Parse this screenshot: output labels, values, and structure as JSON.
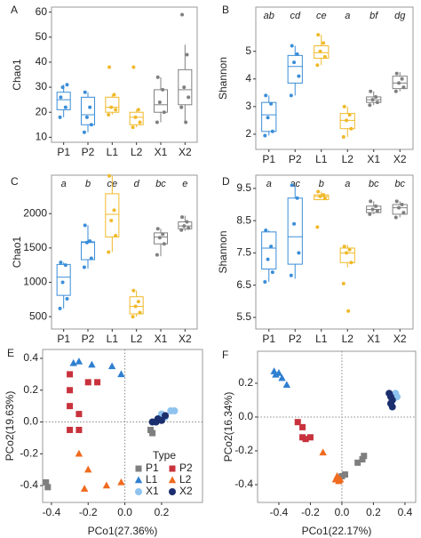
{
  "chart_data": [
    {
      "type": "box",
      "panel_label": "A",
      "y_label": "Chao1",
      "categories": [
        "P1",
        "P2",
        "L1",
        "L2",
        "X1",
        "X2"
      ],
      "colors": [
        "#3b8ed8",
        "#3b8ed8",
        "#f0b92a",
        "#f0b92a",
        "#808080",
        "#808080"
      ],
      "boxes": [
        {
          "whislo": 18,
          "q1": 21,
          "med": 25,
          "q3": 28,
          "whishi": 31,
          "points": [
            26,
            22,
            30,
            31,
            18
          ]
        },
        {
          "whislo": 12,
          "q1": 15,
          "med": 19,
          "q3": 26,
          "whishi": 28,
          "points": [
            28,
            22,
            18,
            15,
            12
          ]
        },
        {
          "whislo": 19,
          "q1": 20,
          "med": 22,
          "q3": 26,
          "whishi": 27,
          "points": [
            38,
            27,
            22,
            21,
            19
          ]
        },
        {
          "whislo": 14,
          "q1": 15,
          "med": 18,
          "q3": 20,
          "whishi": 21,
          "points": [
            38,
            21,
            18,
            16,
            14
          ]
        },
        {
          "whislo": 16,
          "q1": 20,
          "med": 23,
          "q3": 29,
          "whishi": 34,
          "points": [
            34,
            29,
            24,
            20,
            16
          ]
        },
        {
          "whislo": 16,
          "q1": 23,
          "med": 29,
          "q3": 37,
          "whishi": 47,
          "points": [
            59,
            43,
            30,
            26,
            22,
            16
          ]
        }
      ],
      "ylim": [
        8,
        62
      ],
      "yticks": [
        10,
        20,
        30,
        40,
        50,
        60
      ]
    },
    {
      "type": "box",
      "panel_label": "B",
      "y_label": "Shannon",
      "categories": [
        "P1",
        "P2",
        "L1",
        "L2",
        "X1",
        "X2"
      ],
      "colors": [
        "#3b8ed8",
        "#3b8ed8",
        "#f0b92a",
        "#f0b92a",
        "#808080",
        "#808080"
      ],
      "annotations": [
        "ab",
        "cd",
        "ce",
        "a",
        "bf",
        "dg"
      ],
      "boxes": [
        {
          "whislo": 1.95,
          "q1": 2.1,
          "med": 2.7,
          "q3": 3.15,
          "whishi": 3.4,
          "points": [
            3.4,
            3.1,
            2.6,
            2.1,
            1.95
          ]
        },
        {
          "whislo": 3.4,
          "q1": 3.85,
          "med": 4.45,
          "q3": 4.85,
          "whishi": 5.2,
          "points": [
            5.2,
            4.9,
            4.6,
            4.1,
            3.4
          ]
        },
        {
          "whislo": 4.5,
          "q1": 4.75,
          "med": 4.95,
          "q3": 5.2,
          "whishi": 5.6,
          "points": [
            5.6,
            5.3,
            5.0,
            4.8,
            4.5
          ]
        },
        {
          "whislo": 1.9,
          "q1": 2.2,
          "med": 2.5,
          "q3": 2.75,
          "whishi": 3.0,
          "points": [
            3.0,
            2.7,
            2.5,
            2.2,
            1.9
          ]
        },
        {
          "whislo": 3.05,
          "q1": 3.15,
          "med": 3.25,
          "q3": 3.35,
          "whishi": 3.55,
          "points": [
            3.55,
            3.35,
            3.25,
            3.15,
            3.05
          ]
        },
        {
          "whislo": 3.55,
          "q1": 3.65,
          "med": 3.85,
          "q3": 4.1,
          "whishi": 4.25,
          "points": [
            4.2,
            4.0,
            3.85,
            3.7,
            3.55
          ]
        }
      ],
      "ylim": [
        1.45,
        6.6
      ],
      "yticks": [
        2,
        3,
        4,
        5
      ]
    },
    {
      "type": "box",
      "panel_label": "C",
      "y_label": "Chao1",
      "categories": [
        "P1",
        "P2",
        "L1",
        "L2",
        "X1",
        "X2"
      ],
      "colors": [
        "#3b8ed8",
        "#3b8ed8",
        "#f0b92a",
        "#f0b92a",
        "#808080",
        "#808080"
      ],
      "annotations": [
        "a",
        "b",
        "ce",
        "d",
        "bc",
        "e"
      ],
      "boxes": [
        {
          "whislo": 620,
          "q1": 810,
          "med": 1075,
          "q3": 1260,
          "whishi": 1290,
          "points": [
            1290,
            1250,
            1000,
            760,
            620
          ]
        },
        {
          "whislo": 1200,
          "q1": 1330,
          "med": 1580,
          "q3": 1590,
          "whishi": 1830,
          "points": [
            1830,
            1600,
            1580,
            1350,
            1220
          ]
        },
        {
          "whislo": 1440,
          "q1": 1660,
          "med": 1990,
          "q3": 2290,
          "whishi": 2550,
          "points": [
            2550,
            2050,
            1900,
            1680,
            1440
          ]
        },
        {
          "whislo": 500,
          "q1": 540,
          "med": 650,
          "q3": 790,
          "whishi": 880,
          "points": [
            880,
            720,
            650,
            560,
            500
          ]
        },
        {
          "whislo": 1380,
          "q1": 1560,
          "med": 1660,
          "q3": 1720,
          "whishi": 1780,
          "points": [
            1780,
            1700,
            1650,
            1560,
            1400
          ]
        },
        {
          "whislo": 1750,
          "q1": 1780,
          "med": 1820,
          "q3": 1880,
          "whishi": 1970,
          "points": [
            1950,
            1880,
            1820,
            1790,
            1760
          ]
        }
      ],
      "ylim": [
        320,
        2560
      ],
      "yticks": [
        500,
        1000,
        1500,
        2000
      ]
    },
    {
      "type": "box",
      "panel_label": "D",
      "y_label": "Shannon",
      "categories": [
        "P1",
        "P2",
        "L1",
        "L2",
        "X1",
        "X2"
      ],
      "colors": [
        "#3b8ed8",
        "#3b8ed8",
        "#f0b92a",
        "#f0b92a",
        "#808080",
        "#808080"
      ],
      "annotations": [
        "a",
        "ac",
        "b",
        "a",
        "bc",
        "bc"
      ],
      "boxes": [
        {
          "whislo": 6.6,
          "q1": 7.0,
          "med": 7.65,
          "q3": 8.15,
          "whishi": 8.2,
          "points": [
            8.2,
            7.7,
            7.3,
            6.9,
            6.6
          ]
        },
        {
          "whislo": 6.7,
          "q1": 7.15,
          "med": 8.0,
          "q3": 9.2,
          "whishi": 9.6,
          "points": [
            9.6,
            9.2,
            8.4,
            7.5,
            6.8
          ]
        },
        {
          "whislo": 9.15,
          "q1": 9.15,
          "med": 9.25,
          "q3": 9.3,
          "whishi": 9.4,
          "points": [
            9.4,
            9.3,
            9.25,
            9.2,
            8.3
          ]
        },
        {
          "whislo": 7.05,
          "q1": 7.2,
          "med": 7.5,
          "q3": 7.65,
          "whishi": 7.75,
          "points": [
            7.7,
            7.6,
            7.5,
            7.2,
            6.55,
            5.7
          ]
        },
        {
          "whislo": 8.7,
          "q1": 8.75,
          "med": 8.85,
          "q3": 8.95,
          "whishi": 9.1,
          "points": [
            9.1,
            8.95,
            8.85,
            8.8,
            8.7
          ]
        },
        {
          "whislo": 8.6,
          "q1": 8.7,
          "med": 8.9,
          "q3": 9.0,
          "whishi": 9.1,
          "points": [
            9.1,
            9.0,
            8.9,
            8.75,
            8.6
          ]
        }
      ],
      "ylim": [
        5.14,
        9.91
      ],
      "yticks": [
        5.5,
        6.5,
        7.5,
        8.5,
        9.5
      ]
    },
    {
      "type": "scatter",
      "panel_label": "E",
      "x_label": "PCo1(27.36%)",
      "y_label": "PCo2(19.63%)",
      "legend": "bottom-right",
      "legend_title": "Type",
      "zero_lines": true,
      "series": [
        {
          "name": "P1",
          "color": "#7f7f7f",
          "marker": "square",
          "x": [
            -0.43,
            -0.42,
            0.14,
            0.15
          ],
          "y": [
            -0.38,
            -0.41,
            -0.05,
            -0.07
          ]
        },
        {
          "name": "P2",
          "color": "#c8323c",
          "marker": "square",
          "x": [
            -0.3,
            -0.3,
            -0.2,
            -0.15,
            -0.3,
            -0.25,
            -0.3,
            -0.25
          ],
          "y": [
            0.3,
            0.2,
            0.25,
            0.25,
            0.1,
            0.05,
            -0.05,
            -0.05
          ]
        },
        {
          "name": "L1",
          "color": "#2f7fd1",
          "marker": "triangle",
          "x": [
            -0.28,
            -0.25,
            -0.18,
            -0.07,
            -0.02
          ],
          "y": [
            0.37,
            0.38,
            0.36,
            0.35,
            0.3
          ]
        },
        {
          "name": "L2",
          "color": "#f06a1e",
          "marker": "triangle",
          "x": [
            -0.25,
            -0.2,
            -0.22,
            -0.1,
            -0.02
          ],
          "y": [
            -0.2,
            -0.3,
            -0.42,
            -0.4,
            -0.38
          ]
        },
        {
          "name": "X1",
          "color": "#8ec3ef",
          "marker": "circle",
          "x": [
            0.2,
            0.25,
            0.27,
            0.22
          ],
          "y": [
            0.05,
            0.07,
            0.07,
            0.03
          ]
        },
        {
          "name": "X2",
          "color": "#1b2f6e",
          "marker": "circle",
          "x": [
            0.15,
            0.18,
            0.2,
            0.22,
            0.17
          ],
          "y": [
            0.0,
            0.02,
            0.01,
            0.04,
            0.0
          ]
        }
      ],
      "xlim": [
        -0.448,
        0.423
      ],
      "xticks": [
        -0.4,
        -0.2,
        {
          "value": 0,
          "label": "0.0"
        },
        0.2
      ],
      "ylim": [
        -0.506,
        0.456
      ],
      "yticks": [
        0.4,
        0.2,
        {
          "value": 0,
          "label": "0.0"
        },
        -0.2,
        -0.4
      ]
    },
    {
      "type": "scatter",
      "panel_label": "F",
      "x_label": "PCo1(22.17%)",
      "y_label": "PCo2(16.34%)",
      "zero_lines": true,
      "series": [
        {
          "name": "P1",
          "color": "#7f7f7f",
          "marker": "square",
          "x": [
            0.0,
            0.02,
            0.1,
            0.13,
            0.14
          ],
          "y": [
            -0.35,
            -0.34,
            -0.27,
            -0.25,
            -0.23
          ]
        },
        {
          "name": "P2",
          "color": "#c8323c",
          "marker": "square",
          "x": [
            -0.25,
            -0.25,
            -0.23,
            -0.2,
            -0.28
          ],
          "y": [
            -0.06,
            -0.12,
            -0.13,
            -0.12,
            -0.03
          ]
        },
        {
          "name": "L1",
          "color": "#2f7fd1",
          "marker": "triangle",
          "x": [
            -0.43,
            -0.42,
            -0.4,
            -0.38,
            -0.35
          ],
          "y": [
            0.27,
            0.25,
            0.26,
            0.23,
            0.19
          ]
        },
        {
          "name": "L2",
          "color": "#f06a1e",
          "marker": "triangle",
          "x": [
            -0.12,
            -0.03,
            -0.02,
            -0.01,
            -0.04
          ],
          "y": [
            -0.21,
            -0.35,
            -0.38,
            -0.37,
            -0.37
          ]
        },
        {
          "name": "X1",
          "color": "#8ec3ef",
          "marker": "circle",
          "x": [
            0.34,
            0.35,
            0.33
          ],
          "y": [
            0.14,
            0.12,
            0.11
          ]
        },
        {
          "name": "X2",
          "color": "#1b2f6e",
          "marker": "circle",
          "x": [
            0.31,
            0.32,
            0.31,
            0.32,
            0.3
          ],
          "y": [
            0.12,
            0.1,
            0.08,
            0.06,
            0.14
          ]
        }
      ],
      "xlim": [
        -0.535,
        0.468
      ],
      "xticks": [
        -0.4,
        -0.2,
        {
          "value": 0,
          "label": "0.0"
        },
        0.2,
        0.4
      ],
      "ylim": [
        -0.505,
        0.389
      ],
      "yticks": [
        0.2,
        {
          "value": 0,
          "label": "0.0"
        },
        -0.2,
        -0.4
      ]
    }
  ]
}
